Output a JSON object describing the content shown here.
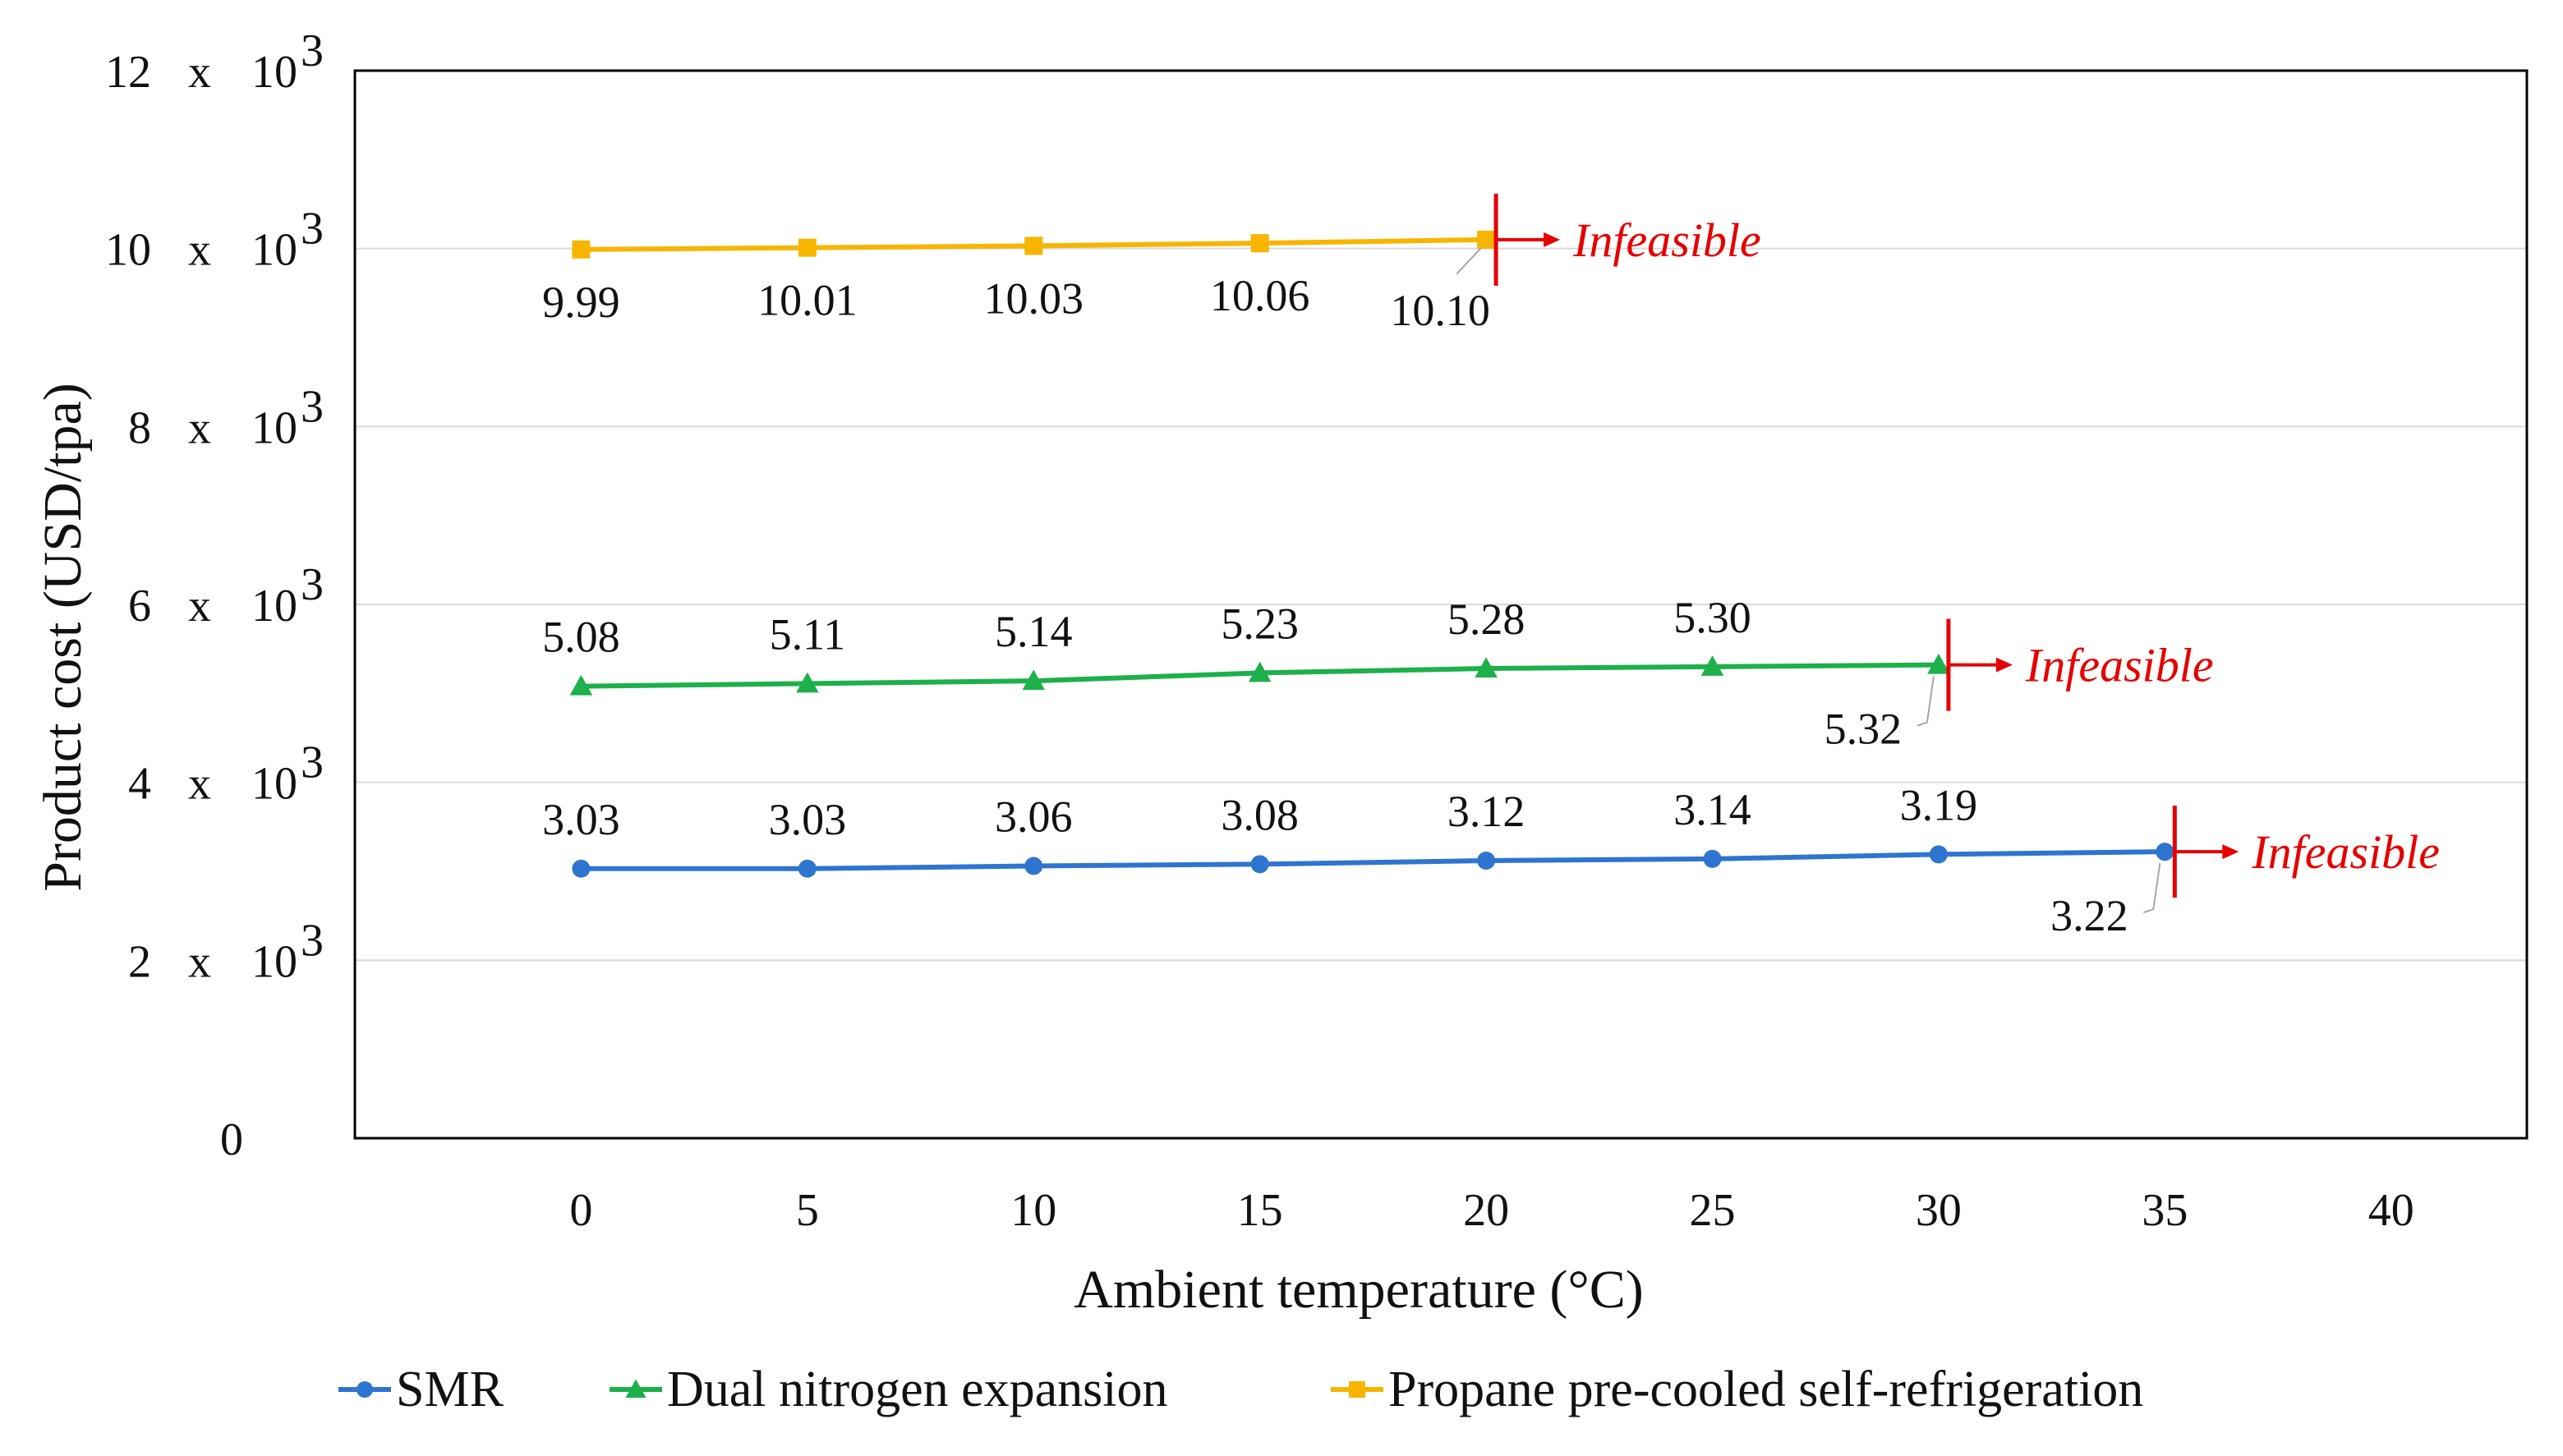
{
  "chart_data": {
    "type": "line",
    "title": "",
    "xlabel": "Ambient temperature (°C)",
    "ylabel": "Product cost (USD/tpa)",
    "xlim": [
      -5,
      43
    ],
    "ylim": [
      0,
      12000
    ],
    "x_ticks": [
      0,
      5,
      10,
      15,
      20,
      25,
      30,
      35,
      40
    ],
    "x_tick_labels": [
      "0",
      "5",
      "10",
      "15",
      "20",
      "25",
      "30",
      "35",
      "40"
    ],
    "y_ticks": [
      {
        "value": 0,
        "mantissa": "0",
        "times": "",
        "base": "",
        "exponent": ""
      },
      {
        "value": 2000,
        "mantissa": "2",
        "times": "x",
        "base": "10",
        "exponent": "3"
      },
      {
        "value": 4000,
        "mantissa": "4",
        "times": "x",
        "base": "10",
        "exponent": "3"
      },
      {
        "value": 6000,
        "mantissa": "6",
        "times": "x",
        "base": "10",
        "exponent": "3"
      },
      {
        "value": 8000,
        "mantissa": "8",
        "times": "x",
        "base": "10",
        "exponent": "3"
      },
      {
        "value": 10000,
        "mantissa": "10",
        "times": "x",
        "base": "10",
        "exponent": "3"
      },
      {
        "value": 12000,
        "mantissa": "12",
        "times": "x",
        "base": "10",
        "exponent": "3"
      }
    ],
    "grid": true,
    "legend_position": "bottom",
    "series": [
      {
        "name": "SMR",
        "color": "#2E75CF",
        "marker": "circle",
        "x": [
          0,
          5,
          10,
          15,
          20,
          25,
          30,
          35
        ],
        "values": [
          3030,
          3030,
          3060,
          3080,
          3120,
          3140,
          3190,
          3220
        ],
        "labels": [
          "3.03",
          "3.03",
          "3.06",
          "3.08",
          "3.12",
          "3.14",
          "3.19",
          "3.22"
        ],
        "infeasible_label": "Infeasible"
      },
      {
        "name": "Dual nitrogen expansion",
        "color": "#1DB04B",
        "marker": "triangle",
        "x": [
          0,
          5,
          10,
          15,
          20,
          25,
          30
        ],
        "values": [
          5080,
          5110,
          5140,
          5230,
          5280,
          5300,
          5320
        ],
        "labels": [
          "5.08",
          "5.11",
          "5.14",
          "5.23",
          "5.28",
          "5.30",
          "5.32"
        ],
        "infeasible_label": "Infeasible"
      },
      {
        "name": "Propane pre-cooled self-refrigeration",
        "color": "#F7B500",
        "marker": "square",
        "x": [
          0,
          5,
          10,
          15,
          20
        ],
        "values": [
          9990,
          10010,
          10030,
          10060,
          10100
        ],
        "labels": [
          "9.99",
          "10.01",
          "10.03",
          "10.06",
          "10.10"
        ],
        "infeasible_label": "Infeasible"
      }
    ],
    "annotation_color": "#E60000"
  }
}
